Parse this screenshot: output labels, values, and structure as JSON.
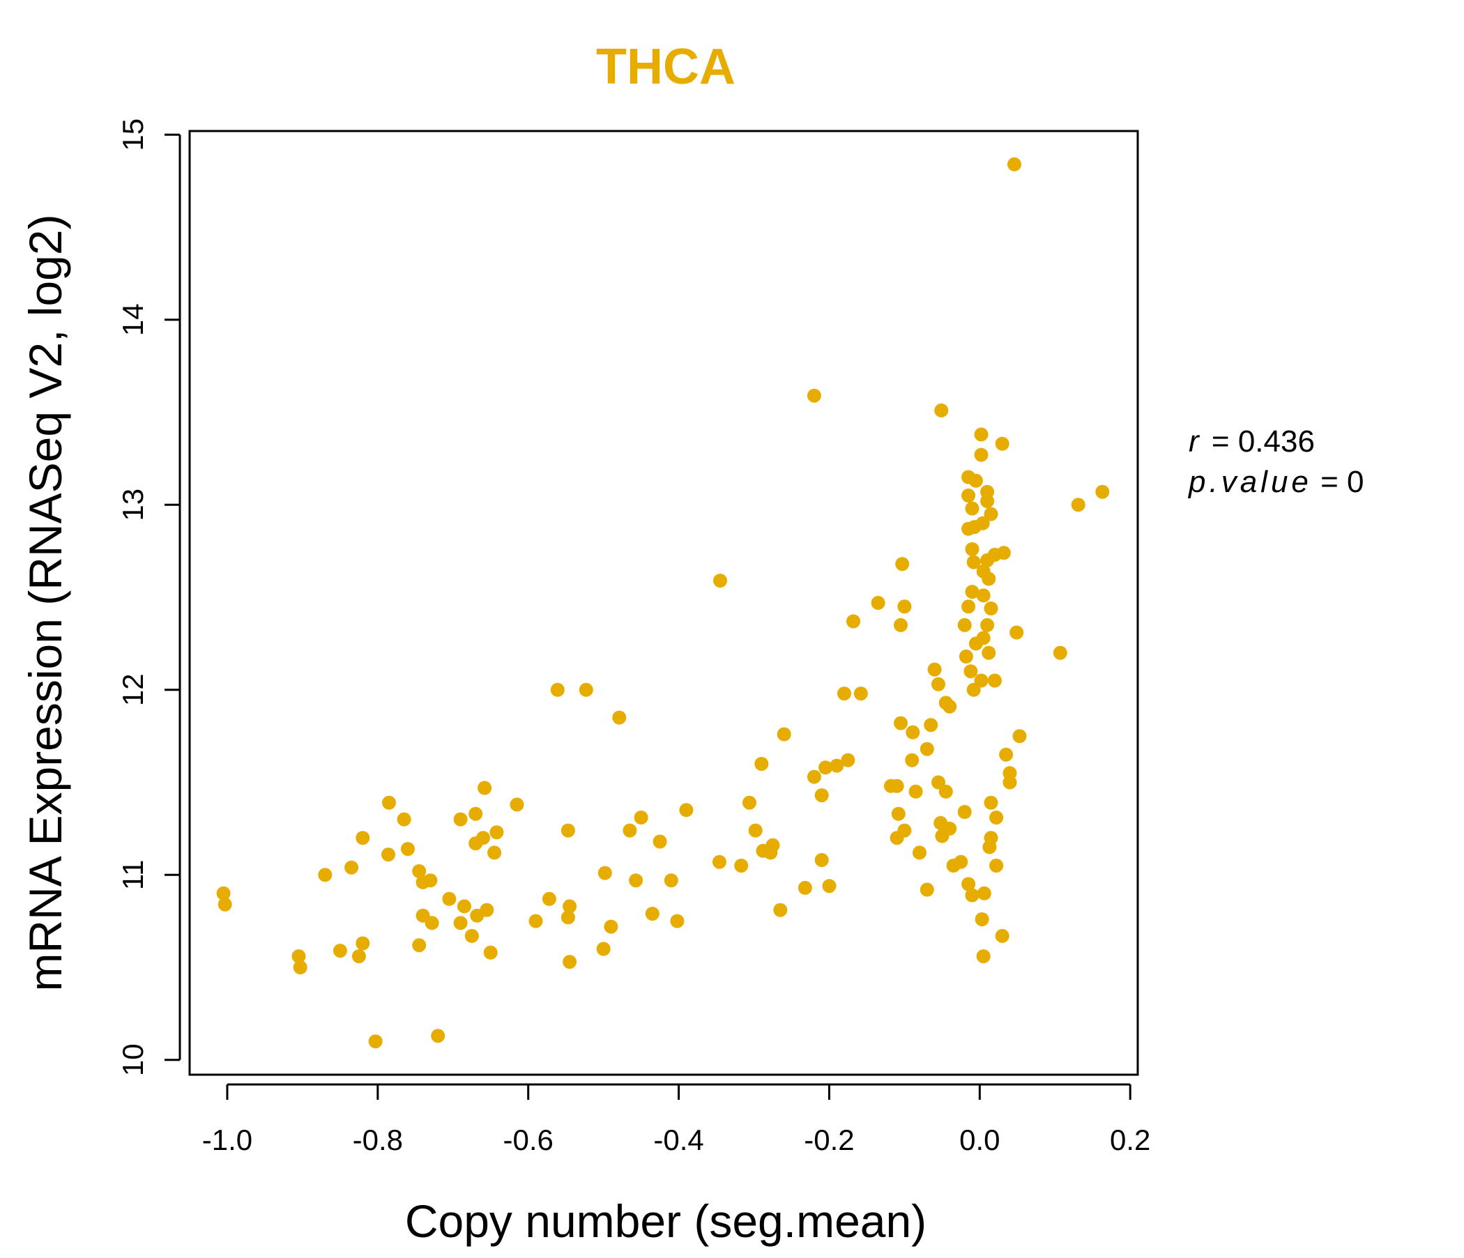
{
  "chart_data": {
    "type": "scatter",
    "title": "THCA",
    "xlabel": "Copy number (seg.mean)",
    "ylabel": "mRNA Expression (RNASeq V2, log2)",
    "xlim": [
      -1.05,
      0.21
    ],
    "ylim": [
      9.92,
      15.02
    ],
    "xticks": [
      -1.0,
      -0.8,
      -0.6,
      -0.4,
      -0.2,
      0.0,
      0.2
    ],
    "xtick_labels": [
      "-1.0",
      "-0.8",
      "-0.6",
      "-0.4",
      "-0.2",
      "0.0",
      "0.2"
    ],
    "yticks": [
      10,
      11,
      12,
      13,
      14,
      15
    ],
    "ytick_labels": [
      "10",
      "11",
      "12",
      "13",
      "14",
      "15"
    ],
    "point_color": "#E6AC00",
    "stats": {
      "r_label": "r",
      "r_value": "0.436",
      "p_label": "p.value",
      "p_value": "0"
    },
    "points": [
      [
        0.046,
        14.84
      ],
      [
        -0.22,
        13.59
      ],
      [
        -0.051,
        13.51
      ],
      [
        0.002,
        13.38
      ],
      [
        0.03,
        13.33
      ],
      [
        0.002,
        13.27
      ],
      [
        0.163,
        13.07
      ],
      [
        0.131,
        13.0
      ],
      [
        -0.345,
        12.59
      ],
      [
        -0.103,
        12.68
      ],
      [
        -0.135,
        12.47
      ],
      [
        -0.1,
        12.45
      ],
      [
        -0.168,
        12.37
      ],
      [
        -0.105,
        12.35
      ],
      [
        0.107,
        12.2
      ],
      [
        0.049,
        12.31
      ],
      [
        0.032,
        12.74
      ],
      [
        -0.561,
        12.0
      ],
      [
        -0.523,
        12.0
      ],
      [
        -0.479,
        11.85
      ],
      [
        -0.18,
        11.98
      ],
      [
        -0.158,
        11.98
      ],
      [
        -0.26,
        11.76
      ],
      [
        -0.105,
        11.82
      ],
      [
        -0.089,
        11.77
      ],
      [
        -0.065,
        11.81
      ],
      [
        -0.06,
        12.11
      ],
      [
        -0.055,
        12.03
      ],
      [
        -0.29,
        11.6
      ],
      [
        -0.22,
        11.53
      ],
      [
        -0.205,
        11.58
      ],
      [
        -0.19,
        11.59
      ],
      [
        -0.175,
        11.62
      ],
      [
        -0.21,
        11.43
      ],
      [
        -0.118,
        11.48
      ],
      [
        -0.09,
        11.62
      ],
      [
        -0.085,
        11.45
      ],
      [
        -0.07,
        11.68
      ],
      [
        -0.055,
        11.5
      ],
      [
        -0.045,
        11.45
      ],
      [
        -0.306,
        11.39
      ],
      [
        -0.298,
        11.24
      ],
      [
        -0.288,
        11.13
      ],
      [
        -0.278,
        11.12
      ],
      [
        -0.275,
        11.16
      ],
      [
        -0.39,
        11.35
      ],
      [
        -0.425,
        11.18
      ],
      [
        -0.45,
        11.31
      ],
      [
        -0.465,
        11.24
      ],
      [
        -0.41,
        10.97
      ],
      [
        -0.435,
        10.79
      ],
      [
        -0.402,
        10.75
      ],
      [
        -0.457,
        10.97
      ],
      [
        -0.498,
        11.01
      ],
      [
        -0.49,
        10.72
      ],
      [
        -0.5,
        10.6
      ],
      [
        -0.547,
        11.24
      ],
      [
        -0.545,
        10.83
      ],
      [
        -0.547,
        10.77
      ],
      [
        -0.545,
        10.53
      ],
      [
        -0.572,
        10.87
      ],
      [
        -0.59,
        10.75
      ],
      [
        -0.615,
        11.38
      ],
      [
        -0.658,
        11.47
      ],
      [
        -0.67,
        11.33
      ],
      [
        -0.69,
        11.3
      ],
      [
        -0.66,
        11.2
      ],
      [
        -0.67,
        11.17
      ],
      [
        -0.642,
        11.23
      ],
      [
        -0.645,
        11.12
      ],
      [
        -0.655,
        10.81
      ],
      [
        -0.668,
        10.78
      ],
      [
        -0.675,
        10.67
      ],
      [
        -0.65,
        10.58
      ],
      [
        -0.685,
        10.83
      ],
      [
        -0.69,
        10.74
      ],
      [
        -0.705,
        10.87
      ],
      [
        -0.72,
        10.13
      ],
      [
        -0.73,
        10.97
      ],
      [
        -0.74,
        10.96
      ],
      [
        -0.745,
        11.02
      ],
      [
        -0.74,
        10.78
      ],
      [
        -0.728,
        10.74
      ],
      [
        -0.745,
        10.62
      ],
      [
        -0.765,
        11.3
      ],
      [
        -0.76,
        11.14
      ],
      [
        -0.785,
        11.39
      ],
      [
        -0.786,
        11.11
      ],
      [
        -0.82,
        11.2
      ],
      [
        -0.835,
        11.04
      ],
      [
        -0.87,
        11.0
      ],
      [
        -0.85,
        10.59
      ],
      [
        -0.82,
        10.63
      ],
      [
        -0.825,
        10.56
      ],
      [
        -0.803,
        10.1
      ],
      [
        -0.905,
        10.56
      ],
      [
        -0.903,
        10.5
      ],
      [
        -1.005,
        10.9
      ],
      [
        -1.003,
        10.84
      ],
      [
        -0.346,
        11.07
      ],
      [
        -0.317,
        11.05
      ],
      [
        -0.265,
        10.81
      ],
      [
        -0.232,
        10.93
      ],
      [
        -0.21,
        11.08
      ],
      [
        -0.2,
        10.94
      ],
      [
        -0.11,
        11.48
      ],
      [
        -0.11,
        11.2
      ],
      [
        -0.1,
        11.24
      ],
      [
        -0.108,
        11.33
      ],
      [
        -0.08,
        11.12
      ],
      [
        -0.07,
        10.92
      ],
      [
        -0.05,
        11.21
      ],
      [
        -0.052,
        11.28
      ],
      [
        -0.04,
        11.25
      ],
      [
        -0.035,
        11.05
      ],
      [
        -0.04,
        11.91
      ],
      [
        -0.045,
        11.93
      ],
      [
        0.005,
        10.56
      ],
      [
        0.003,
        10.76
      ],
      [
        0.03,
        10.67
      ],
      [
        -0.015,
        10.95
      ],
      [
        -0.01,
        10.89
      ],
      [
        0.006,
        10.9
      ],
      [
        0.013,
        11.15
      ],
      [
        0.022,
        11.05
      ],
      [
        -0.025,
        11.07
      ],
      [
        -0.02,
        11.34
      ],
      [
        0.015,
        11.2
      ],
      [
        0.04,
        11.5
      ],
      [
        0.04,
        11.55
      ],
      [
        0.053,
        11.75
      ],
      [
        0.035,
        11.65
      ],
      [
        0.022,
        11.31
      ],
      [
        0.015,
        11.39
      ],
      [
        -0.015,
        13.15
      ],
      [
        -0.005,
        13.13
      ],
      [
        0.01,
        13.07
      ],
      [
        0.01,
        13.02
      ],
      [
        -0.015,
        13.05
      ],
      [
        -0.01,
        12.98
      ],
      [
        0.015,
        12.95
      ],
      [
        0.004,
        12.9
      ],
      [
        -0.007,
        12.88
      ],
      [
        -0.015,
        12.87
      ],
      [
        0.02,
        12.73
      ],
      [
        0.01,
        12.7
      ],
      [
        -0.01,
        12.76
      ],
      [
        -0.008,
        12.69
      ],
      [
        0.005,
        12.64
      ],
      [
        0.012,
        12.6
      ],
      [
        0.005,
        12.51
      ],
      [
        -0.01,
        12.53
      ],
      [
        0.015,
        12.44
      ],
      [
        -0.015,
        12.45
      ],
      [
        0.01,
        12.35
      ],
      [
        -0.02,
        12.35
      ],
      [
        0.005,
        12.28
      ],
      [
        -0.005,
        12.25
      ],
      [
        0.012,
        12.2
      ],
      [
        -0.018,
        12.18
      ],
      [
        0.02,
        12.05
      ],
      [
        -0.012,
        12.1
      ],
      [
        0.002,
        12.05
      ],
      [
        -0.008,
        12.0
      ]
    ]
  }
}
